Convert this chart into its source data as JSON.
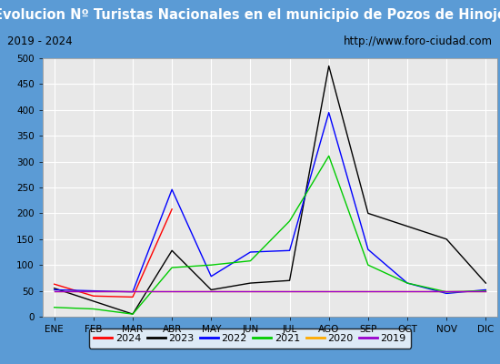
{
  "title": "Evolucion Nº Turistas Nacionales en el municipio de Pozos de Hinojo",
  "subtitle_left": "2019 - 2024",
  "subtitle_right": "http://www.foro-ciudad.com",
  "months": [
    "ENE",
    "FEB",
    "MAR",
    "ABR",
    "MAY",
    "JUN",
    "JUL",
    "AGO",
    "SEP",
    "OCT",
    "NOV",
    "DIC"
  ],
  "ylim": [
    0,
    500
  ],
  "yticks": [
    0,
    50,
    100,
    150,
    200,
    250,
    300,
    350,
    400,
    450,
    500
  ],
  "series": {
    "2024": {
      "color": "#ff0000",
      "values": [
        63,
        40,
        38,
        208,
        null,
        null,
        null,
        null,
        null,
        null,
        null,
        null
      ]
    },
    "2023": {
      "color": "#000000",
      "values": [
        55,
        30,
        5,
        128,
        52,
        65,
        70,
        485,
        200,
        175,
        150,
        65
      ]
    },
    "2022": {
      "color": "#0000ff",
      "values": [
        52,
        50,
        48,
        246,
        78,
        125,
        128,
        395,
        130,
        65,
        45,
        52
      ]
    },
    "2021": {
      "color": "#00cc00",
      "values": [
        18,
        15,
        5,
        95,
        100,
        108,
        185,
        311,
        100,
        65,
        48,
        50
      ]
    },
    "2020": {
      "color": "#ffaa00",
      "values": [
        50,
        50,
        50,
        50,
        50,
        50,
        50,
        50,
        50,
        50,
        50,
        50
      ]
    },
    "2019": {
      "color": "#9900cc",
      "values": [
        50,
        50,
        50,
        50,
        50,
        50,
        50,
        50,
        50,
        50,
        50,
        50
      ]
    }
  },
  "title_bg_color": "#5b9bd5",
  "title_font_color": "#ffffff",
  "subtitle_bg_color": "#ffffff",
  "plot_bg_color": "#e8e8e8",
  "grid_color": "#ffffff",
  "outer_bg_color": "#5b9bd5"
}
